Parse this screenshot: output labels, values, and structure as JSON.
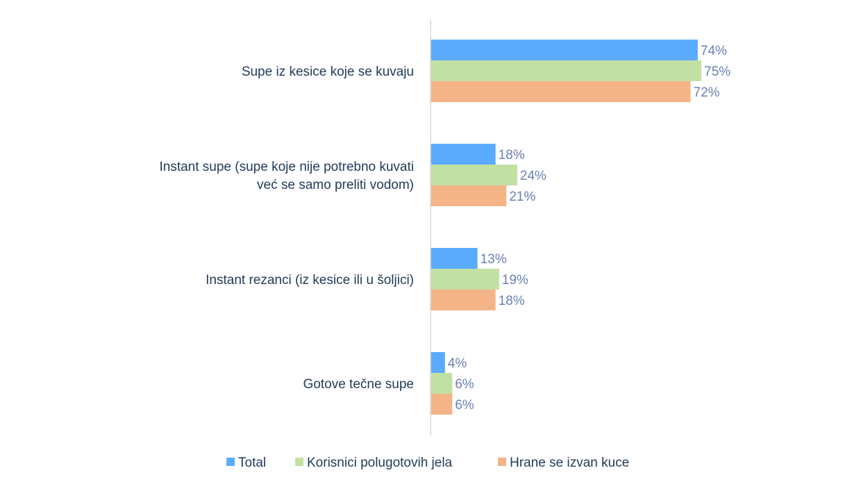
{
  "chart_data": {
    "type": "bar",
    "orientation": "horizontal",
    "categories": [
      [
        "Supe iz kesice koje se kuvaju"
      ],
      [
        "Instant supe (supe koje nije potrebno kuvati",
        "već se samo preliti vodom)"
      ],
      [
        "Instant rezanci (iz kesice ili u šoljici)"
      ],
      [
        "Gotove tečne supe"
      ]
    ],
    "series": [
      {
        "name": "Total",
        "color": "#5aabff",
        "values": [
          74,
          18,
          13,
          4
        ],
        "labels": [
          "74%",
          "18%",
          "13%",
          "4%"
        ]
      },
      {
        "name": "Korisnici polugotovih jela",
        "color": "#c3e0a3",
        "values": [
          75,
          24,
          19,
          6
        ],
        "labels": [
          "75%",
          "24%",
          "19%",
          "6%"
        ]
      },
      {
        "name": "Hrane se izvan kuce",
        "color": "#f4b487",
        "values": [
          72,
          21,
          18,
          6
        ],
        "labels": [
          "72%",
          "21%",
          "18%",
          "6%"
        ]
      }
    ],
    "xlim": [
      0,
      100
    ],
    "unit": "%",
    "legend_position": "bottom",
    "grid": false
  }
}
